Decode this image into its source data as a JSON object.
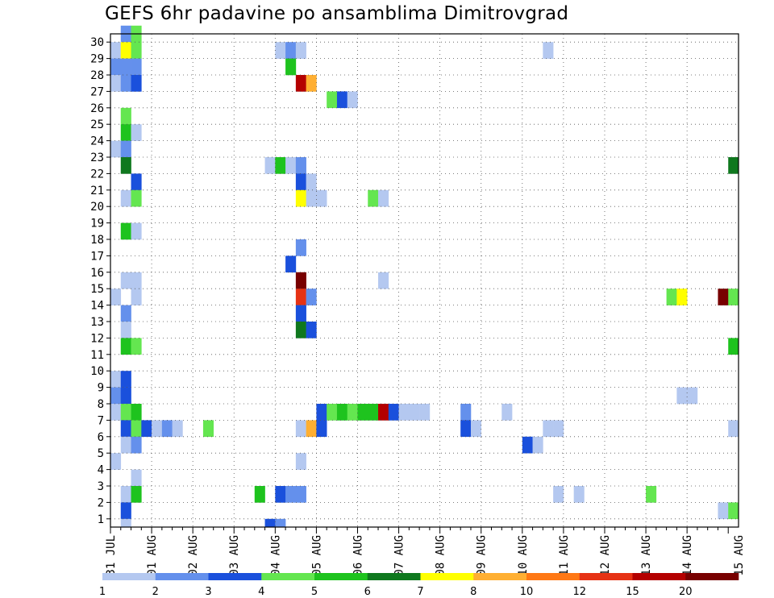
{
  "chart_data": {
    "type": "heatmap",
    "title": "GEFS 6hr padavine po ansamblima Dimitrovgrad",
    "xlabel": "",
    "ylabel": "",
    "x_start": "31 JUL 00Z",
    "x_steps_per_day": 4,
    "x_step_count": 61,
    "x_tick_labels": [
      "31 JUL",
      "01 AUG",
      "02 AUG",
      "03 AUG",
      "04 AUG",
      "05 AUG",
      "06 AUG",
      "07 AUG",
      "08 AUG",
      "09 AUG",
      "10 AUG",
      "11 AUG",
      "12 AUG",
      "13 AUG",
      "14 AUG",
      "15 AUG"
    ],
    "y_tick_labels": [
      "1",
      "2",
      "3",
      "4",
      "5",
      "6",
      "7",
      "8",
      "9",
      "10",
      "11",
      "12",
      "13",
      "14",
      "15",
      "16",
      "17",
      "18",
      "19",
      "20",
      "21",
      "22",
      "23",
      "24",
      "25",
      "26",
      "27",
      "28",
      "29",
      "30"
    ],
    "ylim": [
      0,
      30
    ],
    "grid": "dotted",
    "legend": {
      "placement": "bottom",
      "labels": [
        "1",
        "2",
        "3",
        "4",
        "5",
        "6",
        "7",
        "8",
        "10",
        "12",
        "15",
        "20"
      ],
      "colors": [
        "#b4c8f0",
        "#6490ec",
        "#1a50dc",
        "#64e650",
        "#1ec31e",
        "#0f781e",
        "#ffff00",
        "#ffaf32",
        "#ff7814",
        "#e63214",
        "#b40000",
        "#780000"
      ]
    },
    "cells": [
      {
        "m": 30,
        "t": 1,
        "c": 2
      },
      {
        "m": 30,
        "t": 2,
        "c": 4
      },
      {
        "m": 29,
        "t": 0,
        "c": 1
      },
      {
        "m": 29,
        "t": 1,
        "c": 7
      },
      {
        "m": 29,
        "t": 2,
        "c": 4
      },
      {
        "m": 29,
        "t": 16,
        "c": 1
      },
      {
        "m": 29,
        "t": 17,
        "c": 2
      },
      {
        "m": 29,
        "t": 18,
        "c": 1
      },
      {
        "m": 29,
        "t": 42,
        "c": 1
      },
      {
        "m": 28,
        "t": 0,
        "c": 2
      },
      {
        "m": 28,
        "t": 1,
        "c": 2
      },
      {
        "m": 28,
        "t": 2,
        "c": 2
      },
      {
        "m": 28,
        "t": 17,
        "c": 5
      },
      {
        "m": 27,
        "t": 0,
        "c": 1
      },
      {
        "m": 27,
        "t": 1,
        "c": 2
      },
      {
        "m": 27,
        "t": 2,
        "c": 3
      },
      {
        "m": 27,
        "t": 18,
        "c": 11
      },
      {
        "m": 27,
        "t": 19,
        "c": 8
      },
      {
        "m": 26,
        "t": 21,
        "c": 4
      },
      {
        "m": 26,
        "t": 22,
        "c": 3
      },
      {
        "m": 26,
        "t": 23,
        "c": 1
      },
      {
        "m": 25,
        "t": 1,
        "c": 4
      },
      {
        "m": 24,
        "t": 1,
        "c": 5
      },
      {
        "m": 24,
        "t": 2,
        "c": 1
      },
      {
        "m": 23,
        "t": 0,
        "c": 1
      },
      {
        "m": 23,
        "t": 1,
        "c": 2
      },
      {
        "m": 22,
        "t": 1,
        "c": 6
      },
      {
        "m": 22,
        "t": 15,
        "c": 1
      },
      {
        "m": 22,
        "t": 16,
        "c": 5
      },
      {
        "m": 22,
        "t": 17,
        "c": 1
      },
      {
        "m": 22,
        "t": 18,
        "c": 2
      },
      {
        "m": 22,
        "t": 60,
        "c": 6
      },
      {
        "m": 21,
        "t": 2,
        "c": 3
      },
      {
        "m": 21,
        "t": 18,
        "c": 3
      },
      {
        "m": 21,
        "t": 19,
        "c": 1
      },
      {
        "m": 20,
        "t": 1,
        "c": 1
      },
      {
        "m": 20,
        "t": 2,
        "c": 4
      },
      {
        "m": 20,
        "t": 18,
        "c": 7
      },
      {
        "m": 20,
        "t": 19,
        "c": 1
      },
      {
        "m": 20,
        "t": 20,
        "c": 1
      },
      {
        "m": 20,
        "t": 25,
        "c": 4
      },
      {
        "m": 20,
        "t": 26,
        "c": 1
      },
      {
        "m": 18,
        "t": 1,
        "c": 5
      },
      {
        "m": 18,
        "t": 2,
        "c": 1
      },
      {
        "m": 17,
        "t": 18,
        "c": 2
      },
      {
        "m": 16,
        "t": 17,
        "c": 3
      },
      {
        "m": 15,
        "t": 1,
        "c": 1
      },
      {
        "m": 15,
        "t": 2,
        "c": 1
      },
      {
        "m": 15,
        "t": 18,
        "c": 12
      },
      {
        "m": 15,
        "t": 26,
        "c": 1
      },
      {
        "m": 14,
        "t": 0,
        "c": 1
      },
      {
        "m": 14,
        "t": 2,
        "c": 1
      },
      {
        "m": 14,
        "t": 18,
        "c": 10
      },
      {
        "m": 14,
        "t": 19,
        "c": 2
      },
      {
        "m": 14,
        "t": 54,
        "c": 4
      },
      {
        "m": 14,
        "t": 55,
        "c": 7
      },
      {
        "m": 14,
        "t": 59,
        "c": 12
      },
      {
        "m": 14,
        "t": 60,
        "c": 4
      },
      {
        "m": 13,
        "t": 1,
        "c": 2
      },
      {
        "m": 13,
        "t": 18,
        "c": 3
      },
      {
        "m": 12,
        "t": 1,
        "c": 1
      },
      {
        "m": 12,
        "t": 18,
        "c": 6
      },
      {
        "m": 12,
        "t": 19,
        "c": 3
      },
      {
        "m": 11,
        "t": 1,
        "c": 5
      },
      {
        "m": 11,
        "t": 2,
        "c": 4
      },
      {
        "m": 11,
        "t": 60,
        "c": 5
      },
      {
        "m": 9,
        "t": 0,
        "c": 1
      },
      {
        "m": 9,
        "t": 1,
        "c": 3
      },
      {
        "m": 8,
        "t": 0,
        "c": 2
      },
      {
        "m": 8,
        "t": 1,
        "c": 3
      },
      {
        "m": 8,
        "t": 55,
        "c": 1
      },
      {
        "m": 8,
        "t": 56,
        "c": 1
      },
      {
        "m": 7,
        "t": 0,
        "c": 1
      },
      {
        "m": 7,
        "t": 1,
        "c": 4
      },
      {
        "m": 7,
        "t": 2,
        "c": 5
      },
      {
        "m": 7,
        "t": 20,
        "c": 3
      },
      {
        "m": 7,
        "t": 21,
        "c": 4
      },
      {
        "m": 7,
        "t": 22,
        "c": 5
      },
      {
        "m": 7,
        "t": 23,
        "c": 4
      },
      {
        "m": 7,
        "t": 24,
        "c": 5
      },
      {
        "m": 7,
        "t": 25,
        "c": 5
      },
      {
        "m": 7,
        "t": 26,
        "c": 11
      },
      {
        "m": 7,
        "t": 27,
        "c": 3
      },
      {
        "m": 7,
        "t": 28,
        "c": 1
      },
      {
        "m": 7,
        "t": 29,
        "c": 1
      },
      {
        "m": 7,
        "t": 30,
        "c": 1
      },
      {
        "m": 7,
        "t": 34,
        "c": 2
      },
      {
        "m": 7,
        "t": 38,
        "c": 1
      },
      {
        "m": 6,
        "t": 1,
        "c": 3
      },
      {
        "m": 6,
        "t": 2,
        "c": 4
      },
      {
        "m": 6,
        "t": 3,
        "c": 3
      },
      {
        "m": 6,
        "t": 4,
        "c": 1
      },
      {
        "m": 6,
        "t": 5,
        "c": 2
      },
      {
        "m": 6,
        "t": 6,
        "c": 1
      },
      {
        "m": 6,
        "t": 9,
        "c": 4
      },
      {
        "m": 6,
        "t": 18,
        "c": 1
      },
      {
        "m": 6,
        "t": 19,
        "c": 8
      },
      {
        "m": 6,
        "t": 20,
        "c": 3
      },
      {
        "m": 6,
        "t": 34,
        "c": 3
      },
      {
        "m": 6,
        "t": 35,
        "c": 1
      },
      {
        "m": 6,
        "t": 42,
        "c": 1
      },
      {
        "m": 6,
        "t": 43,
        "c": 1
      },
      {
        "m": 6,
        "t": 60,
        "c": 1
      },
      {
        "m": 5,
        "t": 1,
        "c": 1
      },
      {
        "m": 5,
        "t": 2,
        "c": 2
      },
      {
        "m": 5,
        "t": 40,
        "c": 3
      },
      {
        "m": 5,
        "t": 41,
        "c": 1
      },
      {
        "m": 4,
        "t": 0,
        "c": 1
      },
      {
        "m": 4,
        "t": 18,
        "c": 1
      },
      {
        "m": 3,
        "t": 2,
        "c": 1
      },
      {
        "m": 2,
        "t": 1,
        "c": 1
      },
      {
        "m": 2,
        "t": 2,
        "c": 5
      },
      {
        "m": 2,
        "t": 14,
        "c": 5
      },
      {
        "m": 2,
        "t": 16,
        "c": 3
      },
      {
        "m": 2,
        "t": 17,
        "c": 2
      },
      {
        "m": 2,
        "t": 18,
        "c": 2
      },
      {
        "m": 2,
        "t": 43,
        "c": 1
      },
      {
        "m": 2,
        "t": 45,
        "c": 1
      },
      {
        "m": 2,
        "t": 52,
        "c": 4
      },
      {
        "m": 1,
        "t": 1,
        "c": 3
      },
      {
        "m": 1,
        "t": 59,
        "c": 1
      },
      {
        "m": 1,
        "t": 60,
        "c": 4
      },
      {
        "m": 0,
        "t": 1,
        "c": 1
      },
      {
        "m": 0,
        "t": 15,
        "c": 3
      },
      {
        "m": 0,
        "t": 16,
        "c": 2
      }
    ]
  }
}
